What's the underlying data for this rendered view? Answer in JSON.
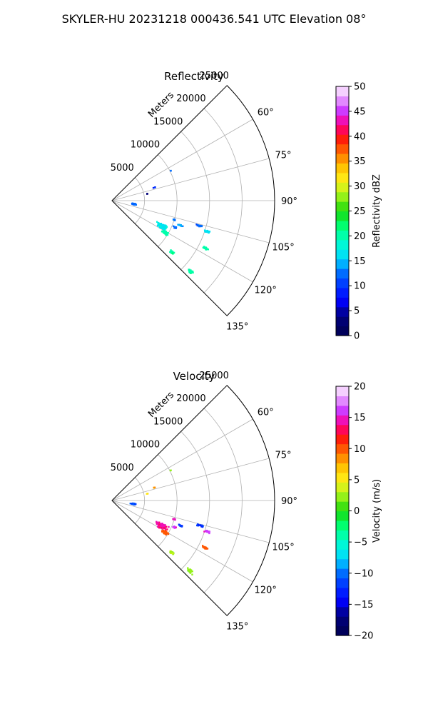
{
  "figure_title": "SKYLER-HU  20231218  000436.541 UTC Elevation 08°",
  "chart_data": [
    {
      "type": "polar_sector_scatter",
      "title": "Reflectivity",
      "radial_label": "Meters",
      "radial_ticks": [
        5000,
        10000,
        15000,
        20000,
        25000
      ],
      "radial_max": 25000,
      "angle_ticks": [
        "60°",
        "75°",
        "90°",
        "105°",
        "120°",
        "135°"
      ],
      "angle_range_deg": [
        45,
        135
      ],
      "colorbar": {
        "label": "Reflectivity dBZ",
        "min": 0,
        "max": 50,
        "ticks": [
          "0",
          "5",
          "10",
          "15",
          "20",
          "25",
          "30",
          "35",
          "40",
          "45",
          "50"
        ]
      },
      "clusters": [
        {
          "az": 99,
          "r": 3400,
          "value": 12,
          "spread_az": 2.2,
          "spread_r": 600,
          "count": 44
        },
        {
          "az": 117,
          "r": 8600,
          "value": 17,
          "spread_az": 3.5,
          "spread_r": 1300,
          "count": 90
        },
        {
          "az": 121,
          "r": 9500,
          "value": 20,
          "spread_az": 2.0,
          "spread_r": 700,
          "count": 50
        },
        {
          "az": 131,
          "r": 12200,
          "value": 21,
          "spread_az": 1.5,
          "spread_r": 500,
          "count": 24
        },
        {
          "az": 132,
          "r": 16200,
          "value": 20,
          "spread_az": 1.2,
          "spread_r": 700,
          "count": 22
        },
        {
          "az": 117,
          "r": 16000,
          "value": 20,
          "spread_az": 0.8,
          "spread_r": 700,
          "count": 24
        },
        {
          "az": 108,
          "r": 15400,
          "value": 16,
          "spread_az": 0.9,
          "spread_r": 700,
          "count": 22
        },
        {
          "az": 106,
          "r": 14000,
          "value": 12,
          "spread_az": 0.8,
          "spread_r": 700,
          "count": 16
        },
        {
          "az": 110,
          "r": 11200,
          "value": 14,
          "spread_az": 0.8,
          "spread_r": 500,
          "count": 12
        },
        {
          "az": 113,
          "r": 10500,
          "value": 12,
          "spread_az": 1.2,
          "spread_r": 500,
          "count": 12
        },
        {
          "az": 107,
          "r": 10000,
          "value": 13,
          "spread_az": 1.0,
          "spread_r": 400,
          "count": 8
        },
        {
          "az": 73,
          "r": 6800,
          "value": 9,
          "spread_az": 0.5,
          "spread_r": 200,
          "count": 3
        },
        {
          "az": 63,
          "r": 10100,
          "value": 13,
          "spread_az": 0.4,
          "spread_r": 200,
          "count": 2
        },
        {
          "az": 79,
          "r": 5600,
          "value": 3,
          "spread_az": 0.5,
          "spread_r": 200,
          "count": 3
        }
      ]
    },
    {
      "type": "polar_sector_scatter",
      "title": "Velocity",
      "radial_label": "Meters",
      "radial_ticks": [
        5000,
        10000,
        15000,
        20000,
        25000
      ],
      "radial_max": 25000,
      "angle_ticks": [
        "60°",
        "75°",
        "90°",
        "105°",
        "120°",
        "135°"
      ],
      "angle_range_deg": [
        45,
        135
      ],
      "colorbar": {
        "label": "Velocity (m/s)",
        "min": -20,
        "max": 20,
        "ticks": [
          "−20",
          "−15",
          "−10",
          "−5",
          "0",
          "5",
          "10",
          "15",
          "20"
        ]
      },
      "clusters": [
        {
          "az": 99,
          "r": 3400,
          "value": -11,
          "spread_az": 2.2,
          "spread_r": 600,
          "count": 44
        },
        {
          "az": 117,
          "r": 8600,
          "value": 14,
          "spread_az": 3.5,
          "spread_r": 1300,
          "count": 90
        },
        {
          "az": 121,
          "r": 9500,
          "value": 10,
          "spread_az": 2.0,
          "spread_r": 700,
          "count": 50
        },
        {
          "az": 131,
          "r": 12200,
          "value": 3,
          "spread_az": 1.5,
          "spread_r": 500,
          "count": 24
        },
        {
          "az": 132,
          "r": 16200,
          "value": 2,
          "spread_az": 1.2,
          "spread_r": 700,
          "count": 22
        },
        {
          "az": 117,
          "r": 16000,
          "value": 10,
          "spread_az": 0.8,
          "spread_r": 700,
          "count": 24
        },
        {
          "az": 108,
          "r": 15400,
          "value": 16,
          "spread_az": 0.9,
          "spread_r": 700,
          "count": 22
        },
        {
          "az": 106,
          "r": 14000,
          "value": -12,
          "spread_az": 0.8,
          "spread_r": 700,
          "count": 16
        },
        {
          "az": 110,
          "r": 11200,
          "value": -12,
          "spread_az": 0.8,
          "spread_r": 500,
          "count": 12
        },
        {
          "az": 113,
          "r": 10500,
          "value": 16,
          "spread_az": 1.2,
          "spread_r": 500,
          "count": 12
        },
        {
          "az": 107,
          "r": 10000,
          "value": 15,
          "spread_az": 1.0,
          "spread_r": 400,
          "count": 8
        },
        {
          "az": 73,
          "r": 6800,
          "value": 8,
          "spread_az": 0.5,
          "spread_r": 200,
          "count": 3
        },
        {
          "az": 63,
          "r": 10100,
          "value": 3,
          "spread_az": 0.4,
          "spread_r": 200,
          "count": 2
        },
        {
          "az": 79,
          "r": 5600,
          "value": 6,
          "spread_az": 0.5,
          "spread_r": 200,
          "count": 3
        }
      ]
    }
  ]
}
